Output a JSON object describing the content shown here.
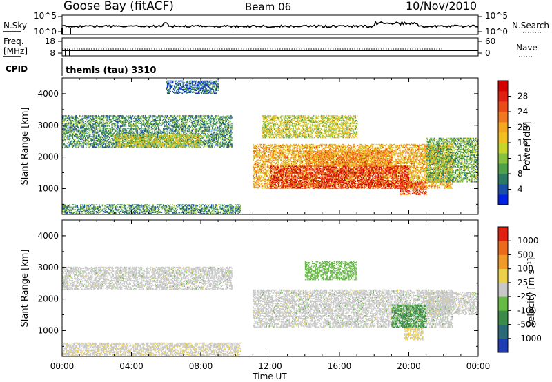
{
  "header": {
    "station": "Goose Bay (fitACF)",
    "beam": "Beam 06",
    "date": "10/Nov/2010"
  },
  "status_panels": {
    "nsky_label": "N.Sky",
    "nsearch_label": "N.Search",
    "noise_ticks_left": [
      "10^5",
      "10^0"
    ],
    "noise_ticks_right": [
      "10^5",
      "10^0"
    ],
    "freq_label_line1": "Freq.",
    "freq_label_line2": "[MHz]",
    "freq_ticks": [
      "18",
      "8"
    ],
    "nave_label": "Nave",
    "nave_ticks": [
      "60",
      "0"
    ],
    "cpid_label": "CPID",
    "cpid_value": "themis (tau) 3310"
  },
  "axes": {
    "ylabel": "Slant Range [km]",
    "xlabel": "Time UT",
    "yticks": [
      "4000",
      "3000",
      "2000",
      "1000"
    ],
    "xticks": [
      "00:00",
      "04:00",
      "08:00",
      "12:00",
      "16:00",
      "20:00",
      "00:00"
    ]
  },
  "colorbars": {
    "power": {
      "label": "Power [dB]",
      "ticks": [
        "28",
        "24",
        "20",
        "16",
        "12",
        "8",
        "4"
      ],
      "colors": [
        "#0022e6",
        "#1a4fa8",
        "#2a7a66",
        "#4ea04a",
        "#88c040",
        "#c8d62a",
        "#f0c020",
        "#f4a820",
        "#f07820",
        "#ec4a18",
        "#e02010",
        "#d40000"
      ]
    },
    "velocity": {
      "label": "Velocity [m s⁻¹]",
      "ticks": [
        "1000",
        "500",
        "100",
        "25",
        "-25",
        "-100",
        "-500",
        "-1000"
      ],
      "colors": [
        "#1e3cb4",
        "#2a6a78",
        "#3a8a48",
        "#66bb44",
        "#c8c8c8",
        "#ecd04a",
        "#f09a2a",
        "#ec6a1c",
        "#e02010"
      ]
    }
  },
  "chart_data": {
    "type": "heatmap",
    "title": "Goose Bay (fitACF) Beam 06 10/Nov/2010",
    "x_range_hours": [
      0,
      24
    ],
    "y_range_km": [
      180,
      4500
    ],
    "panels": [
      {
        "name": "Power",
        "units": "dB",
        "clim": [
          0,
          30
        ],
        "regions": [
          {
            "t": [
              0.0,
              9.8
            ],
            "r": [
              2300,
              3300
            ],
            "v": 8
          },
          {
            "t": [
              3.0,
              8.0
            ],
            "r": [
              2300,
              2700
            ],
            "v": 14
          },
          {
            "t": [
              0.0,
              10.3
            ],
            "r": [
              200,
              500
            ],
            "v": 8
          },
          {
            "t": [
              6.0,
              9.0
            ],
            "r": [
              4000,
              4400
            ],
            "v": 5
          },
          {
            "t": [
              11.0,
              22.5
            ],
            "r": [
              1000,
              2400
            ],
            "v": 18
          },
          {
            "t": [
              12.0,
              20.0
            ],
            "r": [
              1000,
              1700
            ],
            "v": 26
          },
          {
            "t": [
              14.0,
              19.0
            ],
            "r": [
              1700,
              2200
            ],
            "v": 20
          },
          {
            "t": [
              19.5,
              21.0
            ],
            "r": [
              800,
              1200
            ],
            "v": 24
          },
          {
            "t": [
              11.5,
              17.0
            ],
            "r": [
              2600,
              3300
            ],
            "v": 14
          },
          {
            "t": [
              21.0,
              24.0
            ],
            "r": [
              1200,
              2600
            ],
            "v": 10
          }
        ]
      },
      {
        "name": "Velocity",
        "units": "m s^-1",
        "clim": [
          -1000,
          1000
        ],
        "regions": [
          {
            "t": [
              0.0,
              9.8
            ],
            "r": [
              2300,
              3000
            ],
            "v": 0
          },
          {
            "t": [
              0.0,
              10.3
            ],
            "r": [
              200,
              600
            ],
            "v": 50
          },
          {
            "t": [
              11.0,
              22.5
            ],
            "r": [
              1100,
              2300
            ],
            "v": 0
          },
          {
            "t": [
              14.0,
              17.0
            ],
            "r": [
              2600,
              3200
            ],
            "v": -200
          },
          {
            "t": [
              19.7,
              20.8
            ],
            "r": [
              700,
              1100
            ],
            "v": 150
          },
          {
            "t": [
              19.0,
              21.0
            ],
            "r": [
              1100,
              1800
            ],
            "v": -400
          },
          {
            "t": [
              21.0,
              24.0
            ],
            "r": [
              1500,
              2200
            ],
            "v": 0
          }
        ]
      }
    ]
  }
}
